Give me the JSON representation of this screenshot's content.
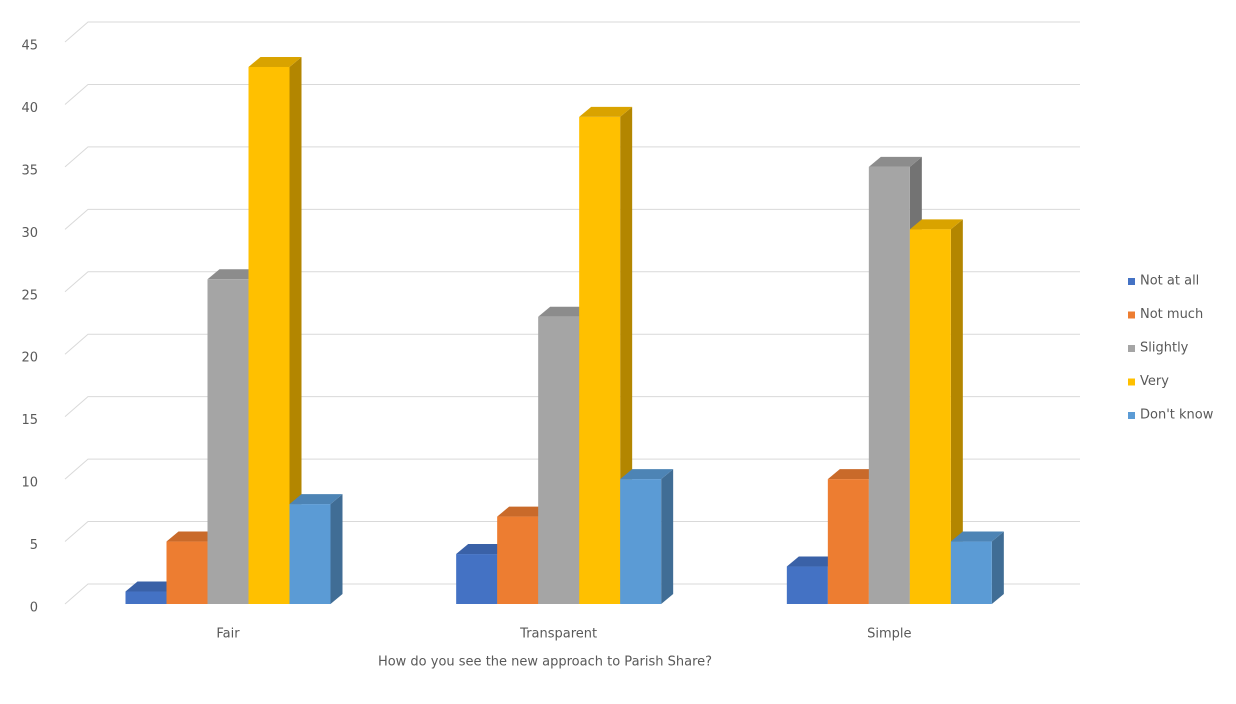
{
  "chart_data": {
    "type": "bar3d",
    "x_label": "How do you see the new approach to Parish Share?",
    "categories": [
      "Fair",
      "Transparent",
      "Simple"
    ],
    "series": [
      {
        "name": "Not at all",
        "color": "#4472c4",
        "values": [
          1,
          4,
          3
        ]
      },
      {
        "name": "Not much",
        "color": "#ed7d31",
        "values": [
          5,
          7,
          10
        ]
      },
      {
        "name": "Slightly",
        "color": "#a5a5a5",
        "values": [
          26,
          23,
          35
        ]
      },
      {
        "name": "Very",
        "color": "#ffc000",
        "values": [
          43,
          39,
          30
        ]
      },
      {
        "name": "Don't know",
        "color": "#5b9bd5",
        "values": [
          8,
          10,
          5
        ]
      }
    ],
    "ylim": [
      0,
      45
    ],
    "yticks": [
      0,
      5,
      10,
      15,
      20,
      25,
      30,
      35,
      40,
      45
    ],
    "grid": true,
    "legend": "right"
  }
}
